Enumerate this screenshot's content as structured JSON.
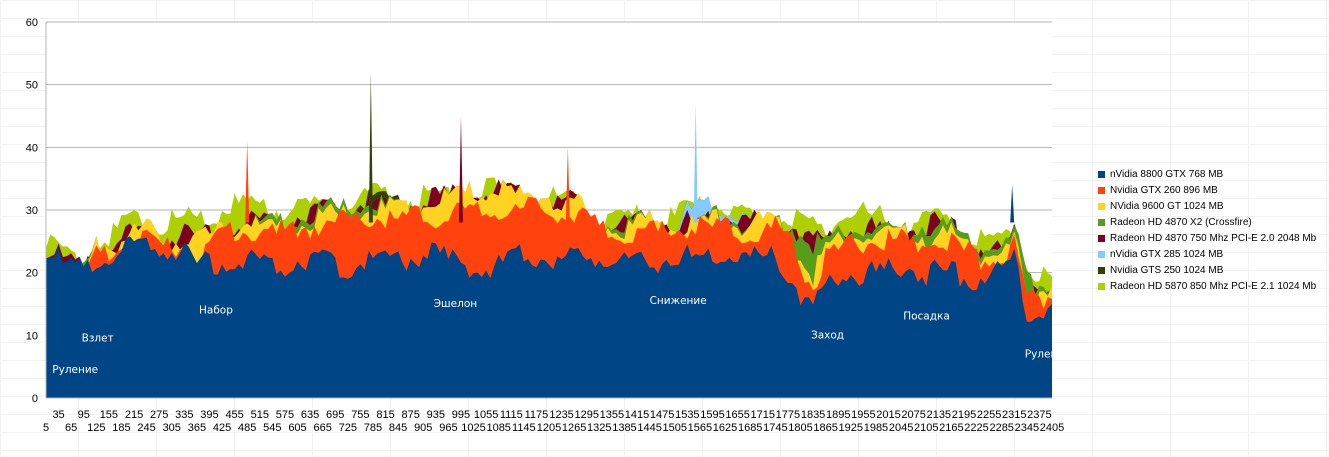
{
  "chart_data": {
    "type": "area",
    "title": "",
    "xlabel": "",
    "ylabel": "",
    "ylim": [
      0,
      60
    ],
    "yticks": [
      0,
      10,
      20,
      30,
      40,
      50,
      60
    ],
    "xlim": [
      5,
      2405
    ],
    "xticks_row1": [
      "35",
      "95",
      "155",
      "215",
      "275",
      "335",
      "395",
      "455",
      "515",
      "575",
      "635",
      "695",
      "755",
      "815",
      "875",
      "935",
      "995",
      "1055",
      "1115",
      "1175",
      "1235",
      "1295",
      "1355",
      "1415",
      "1475",
      "1535",
      "1595",
      "1655",
      "1715",
      "1775",
      "1835",
      "1895",
      "1955",
      "2015",
      "2075",
      "2135",
      "2195",
      "2255",
      "2315",
      "2375"
    ],
    "xticks_row2": [
      "5",
      "65",
      "125",
      "185",
      "245",
      "305",
      "365",
      "425",
      "485",
      "545",
      "605",
      "665",
      "725",
      "785",
      "845",
      "905",
      "965",
      "1025",
      "1085",
      "1145",
      "1205",
      "1265",
      "1325",
      "1385",
      "1445",
      "1505",
      "1565",
      "1625",
      "1685",
      "1745",
      "1805",
      "1865",
      "1925",
      "1985",
      "2045",
      "2105",
      "2165",
      "2225",
      "2285",
      "2345",
      "2405"
    ],
    "grid": true,
    "legend_position": "right",
    "series": [
      {
        "name": "nVidia 8800 GTX 768 MB",
        "color": "#004586",
        "x": [
          5,
          50,
          95,
          125,
          185,
          245,
          275,
          335,
          365,
          425,
          485,
          545,
          605,
          665,
          725,
          785,
          845,
          905,
          965,
          1025,
          1085,
          1145,
          1205,
          1265,
          1325,
          1385,
          1445,
          1505,
          1565,
          1625,
          1685,
          1745,
          1775,
          1805,
          1835,
          1865,
          1925,
          1985,
          2045,
          2105,
          2165,
          2225,
          2255,
          2285,
          2315,
          2345,
          2375,
          2405
        ],
        "values": [
          24,
          21,
          20,
          22,
          23,
          25,
          24,
          23,
          21,
          22,
          22,
          21,
          22,
          22,
          21,
          22,
          22,
          23,
          22,
          21,
          21,
          23,
          22,
          22,
          23,
          22,
          21,
          23,
          22,
          23,
          22,
          23,
          20,
          17,
          14,
          18,
          20,
          20,
          21,
          20,
          20,
          19,
          20,
          21,
          22,
          13,
          14,
          16
        ]
      },
      {
        "name": "Nvidia GTX 260 896 MB",
        "color": "#ff420e",
        "x": [
          5,
          50,
          95,
          125,
          185,
          245,
          275,
          335,
          365,
          425,
          485,
          545,
          605,
          665,
          725,
          785,
          845,
          905,
          965,
          1025,
          1085,
          1145,
          1205,
          1265,
          1325,
          1385,
          1445,
          1505,
          1565,
          1625,
          1685,
          1745,
          1775,
          1805,
          1835,
          1865,
          1925,
          1985,
          2045,
          2105,
          2165,
          2225,
          2255,
          2285,
          2315,
          2345,
          2375,
          2405
        ],
        "values": [
          22,
          19,
          18,
          23,
          24,
          26,
          24,
          25,
          23,
          26,
          27,
          26,
          27,
          28,
          28,
          29,
          28,
          29,
          29,
          29,
          30,
          30,
          30,
          29,
          27,
          26,
          26,
          27,
          27,
          27,
          26,
          27,
          26,
          21,
          18,
          22,
          25,
          25,
          25,
          25,
          25,
          22,
          22,
          22,
          24,
          15,
          16,
          17
        ]
      },
      {
        "name": "NVidia 9600 GT 1024 MB",
        "color": "#ffd320",
        "x": [
          5,
          50,
          95,
          125,
          185,
          245,
          275,
          335,
          365,
          425,
          485,
          545,
          605,
          665,
          725,
          785,
          845,
          905,
          965,
          1025,
          1085,
          1145,
          1205,
          1265,
          1325,
          1385,
          1445,
          1505,
          1565,
          1625,
          1685,
          1745,
          1775,
          1805,
          1835,
          1865,
          1925,
          1985,
          2045,
          2105,
          2165,
          2225,
          2255,
          2285,
          2315,
          2345,
          2375,
          2405
        ],
        "values": [
          23,
          20,
          19,
          24,
          25,
          27,
          25,
          26,
          25,
          27,
          28,
          27,
          28,
          29,
          29,
          30,
          30,
          31,
          32,
          33,
          33,
          32,
          32,
          31,
          28,
          27,
          28,
          28,
          28,
          28,
          28,
          28,
          27,
          22,
          20,
          24,
          26,
          26,
          26,
          26,
          26,
          23,
          23,
          23,
          25,
          16,
          17,
          18
        ]
      },
      {
        "name": "Radeon HD 4870 X2  (Crossfire)",
        "color": "#579d1c",
        "x": [
          5,
          50,
          95,
          125,
          185,
          245,
          275,
          335,
          365,
          425,
          485,
          545,
          605,
          665,
          725,
          785,
          845,
          905,
          965,
          1025,
          1085,
          1145,
          1205,
          1265,
          1325,
          1385,
          1445,
          1505,
          1565,
          1625,
          1685,
          1745,
          1775,
          1805,
          1835,
          1865,
          1925,
          1985,
          2045,
          2105,
          2165,
          2225,
          2255,
          2285,
          2315,
          2345,
          2375,
          2405
        ],
        "values": [
          23,
          21,
          20,
          24,
          25,
          27,
          25,
          26,
          25,
          27,
          28,
          28,
          29,
          30,
          30,
          31,
          30,
          31,
          32,
          33,
          33,
          32,
          32,
          31,
          28,
          28,
          28,
          28,
          28,
          29,
          28,
          28,
          28,
          26,
          25,
          25,
          27,
          27,
          26,
          28,
          27,
          24,
          24,
          24,
          26,
          20,
          18,
          18
        ]
      },
      {
        "name": "Radeon HD 4870 750 Mhz PCI-E 2.0 2048 Mb",
        "color": "#7e0021",
        "x": [
          5,
          50,
          95,
          125,
          185,
          245,
          275,
          335,
          365,
          425,
          485,
          545,
          605,
          665,
          725,
          785,
          845,
          905,
          965,
          1025,
          1085,
          1145,
          1205,
          1265,
          1325,
          1385,
          1445,
          1505,
          1565,
          1625,
          1685,
          1745,
          1775,
          1805,
          1835,
          1865,
          1925,
          1985,
          2045,
          2105,
          2165,
          2225,
          2255,
          2285,
          2315,
          2345,
          2375,
          2405
        ],
        "values": [
          24,
          22,
          20,
          24,
          25,
          27,
          25,
          26,
          25,
          27,
          28,
          28,
          29,
          30,
          30,
          31,
          30,
          31,
          32,
          33,
          33,
          32,
          32,
          31,
          28,
          28,
          28,
          28,
          28,
          29,
          28,
          28,
          28,
          27,
          25,
          25,
          27,
          27,
          26,
          28,
          27,
          24,
          24,
          24,
          26,
          20,
          18,
          18
        ]
      },
      {
        "name": "nVidia GTX 285 1024 MB",
        "color": "#83caff",
        "x": [
          5,
          50,
          95,
          125,
          185,
          245,
          275,
          335,
          365,
          425,
          485,
          545,
          605,
          665,
          725,
          785,
          845,
          905,
          965,
          1025,
          1085,
          1145,
          1205,
          1265,
          1325,
          1385,
          1445,
          1505,
          1565,
          1625,
          1685,
          1745,
          1775,
          1805,
          1835,
          1865,
          1925,
          1985,
          2045,
          2105,
          2165,
          2225,
          2255,
          2285,
          2315,
          2345,
          2375,
          2405
        ],
        "values": [
          24,
          22,
          20,
          24,
          25,
          27,
          25,
          26,
          25,
          27,
          28,
          28,
          29,
          30,
          30,
          31,
          30,
          31,
          32,
          33,
          33,
          32,
          32,
          31,
          28,
          28,
          28,
          28,
          31,
          30,
          28,
          28,
          28,
          27,
          25,
          25,
          27,
          27,
          26,
          28,
          27,
          24,
          24,
          24,
          26,
          20,
          18,
          18
        ]
      },
      {
        "name": "Nvidia GTS 250 1024 MB",
        "color": "#314004",
        "x": [
          5,
          50,
          95,
          125,
          185,
          245,
          275,
          335,
          365,
          425,
          485,
          545,
          605,
          665,
          725,
          785,
          845,
          905,
          965,
          1025,
          1085,
          1145,
          1205,
          1265,
          1325,
          1385,
          1445,
          1505,
          1565,
          1625,
          1685,
          1745,
          1775,
          1805,
          1835,
          1865,
          1925,
          1985,
          2045,
          2105,
          2165,
          2225,
          2255,
          2285,
          2315,
          2345,
          2375,
          2405
        ],
        "values": [
          24,
          22,
          20,
          24,
          25,
          27,
          25,
          26,
          25,
          27,
          28,
          28,
          29,
          30,
          30,
          32,
          31,
          31,
          32,
          33,
          33,
          32,
          32,
          31,
          28,
          28,
          28,
          28,
          31,
          30,
          28,
          28,
          28,
          27,
          25,
          25,
          27,
          27,
          26,
          28,
          27,
          24,
          24,
          24,
          26,
          20,
          18,
          18
        ]
      },
      {
        "name": "Radeon HD 5870 850 Mhz PCI-E 2.1 1024 Mb",
        "color": "#aecf00",
        "x": [
          5,
          50,
          95,
          125,
          185,
          245,
          275,
          335,
          365,
          425,
          485,
          545,
          605,
          665,
          725,
          785,
          845,
          905,
          965,
          1025,
          1085,
          1145,
          1205,
          1265,
          1325,
          1385,
          1445,
          1505,
          1565,
          1625,
          1685,
          1745,
          1775,
          1805,
          1835,
          1865,
          1925,
          1985,
          2045,
          2105,
          2165,
          2225,
          2255,
          2285,
          2315,
          2345,
          2375,
          2405
        ],
        "values": [
          25,
          23,
          21,
          25,
          27,
          29,
          27,
          29,
          28,
          30,
          31,
          30,
          31,
          31,
          31,
          33,
          31,
          32,
          33,
          33,
          33,
          32,
          32,
          31,
          29,
          29,
          29,
          29,
          31,
          30,
          29,
          29,
          29,
          28,
          27,
          27,
          30,
          29,
          27,
          29,
          28,
          25,
          25,
          25,
          27,
          21,
          19,
          19
        ]
      }
    ],
    "spikes": [
      {
        "series": "Nvidia GTS 250 1024 MB",
        "x": 780,
        "y": 52
      },
      {
        "series": "Radeon HD 4870 750 Mhz PCI-E 2.0 2048 Mb",
        "x": 995,
        "y": 45
      },
      {
        "series": "nVidia GTX 285 1024 MB",
        "x": 1555,
        "y": 47
      },
      {
        "series": "Nvidia GTX 260 896 MB",
        "x": 485,
        "y": 41
      },
      {
        "series": "Nvidia GTX 260 896 MB",
        "x": 1250,
        "y": 40
      },
      {
        "series": "nVidia 8800 GTX 768 MB",
        "x": 2310,
        "y": 34
      }
    ],
    "annotations": [
      {
        "text": "Руление",
        "x": 20,
        "y": 4
      },
      {
        "text": "Взлет",
        "x": 90,
        "y": 9
      },
      {
        "text": "Набор",
        "x": 370,
        "y": 13.5
      },
      {
        "text": "Эшелон",
        "x": 930,
        "y": 14.5
      },
      {
        "text": "Снижение",
        "x": 1445,
        "y": 15
      },
      {
        "text": "Заход",
        "x": 1830,
        "y": 9.5
      },
      {
        "text": "Посадка",
        "x": 2050,
        "y": 12.5
      },
      {
        "text": "Руление",
        "x": 2340,
        "y": 6.5
      }
    ]
  }
}
